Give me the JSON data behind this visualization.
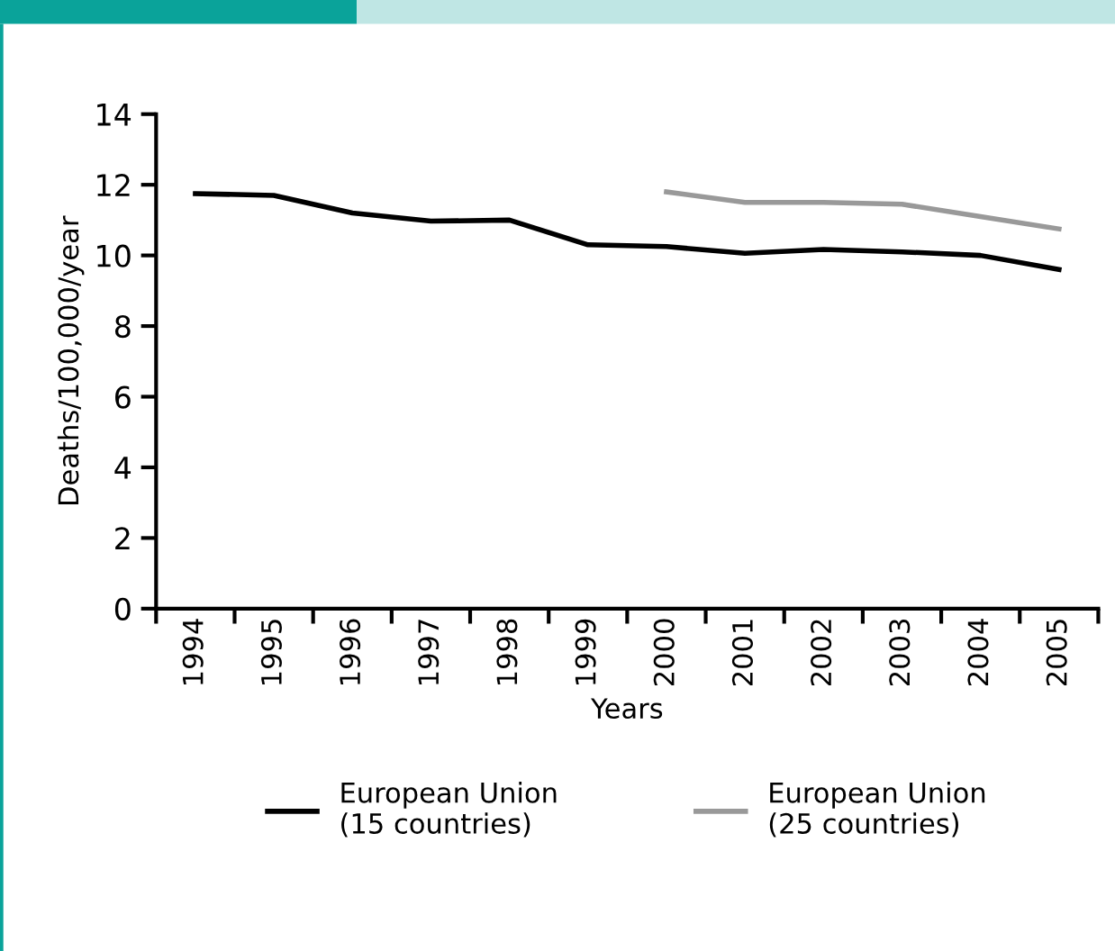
{
  "chart_data": {
    "type": "line",
    "xlabel": "Years",
    "ylabel": "Deaths/100,000/year",
    "categories": [
      "1994",
      "1995",
      "1996",
      "1997",
      "1998",
      "1999",
      "2000",
      "2001",
      "2002",
      "2003",
      "2004",
      "2005"
    ],
    "series": [
      {
        "name": "European Union\n(15 countries)",
        "color": "#000000",
        "values": [
          11.75,
          11.7,
          11.2,
          10.97,
          11.0,
          10.3,
          10.25,
          10.06,
          10.17,
          10.1,
          10.0,
          9.6
        ]
      },
      {
        "name": "European Union\n(25 countries)",
        "color": "#999999",
        "values": [
          null,
          null,
          null,
          null,
          null,
          null,
          11.8,
          11.5,
          11.5,
          11.45,
          11.1,
          10.75
        ]
      }
    ],
    "ylim": [
      0,
      14
    ],
    "yticks": [
      0,
      2,
      4,
      6,
      8,
      10,
      12,
      14
    ],
    "grid": false,
    "legend": "bottom",
    "marker": "none",
    "line_style": "solid"
  }
}
